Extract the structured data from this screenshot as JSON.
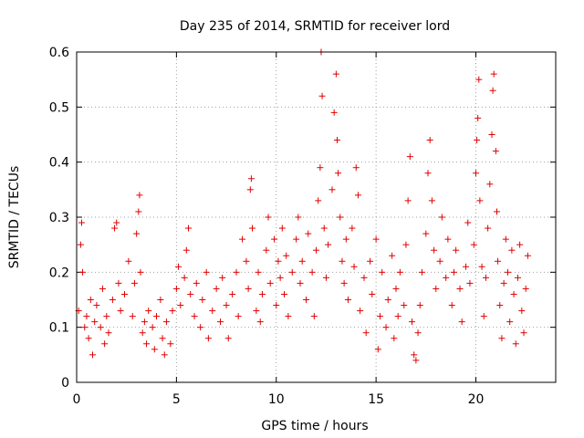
{
  "chart_data": {
    "type": "scatter",
    "title": "Day 235 of 2014, SRMTID for receiver lord",
    "xlabel": "GPS time / hours",
    "ylabel": "SRMTID / TECUs",
    "xlim": [
      0,
      24
    ],
    "ylim": [
      0,
      0.6
    ],
    "xticks": [
      "0",
      "5",
      "10",
      "15",
      "20"
    ],
    "yticks": [
      "0",
      "0.1",
      "0.2",
      "0.3",
      "0.4",
      "0.5",
      "0.6"
    ],
    "grid": true,
    "marker": "+",
    "series_color": "#e00000",
    "series": [
      {
        "name": "SRMTID",
        "points": [
          [
            0.1,
            0.13
          ],
          [
            0.2,
            0.25
          ],
          [
            0.25,
            0.29
          ],
          [
            0.3,
            0.2
          ],
          [
            0.4,
            0.1
          ],
          [
            0.5,
            0.12
          ],
          [
            0.6,
            0.08
          ],
          [
            0.7,
            0.15
          ],
          [
            0.8,
            0.05
          ],
          [
            0.9,
            0.11
          ],
          [
            1.0,
            0.14
          ],
          [
            1.2,
            0.1
          ],
          [
            1.3,
            0.17
          ],
          [
            1.4,
            0.07
          ],
          [
            1.5,
            0.12
          ],
          [
            1.6,
            0.09
          ],
          [
            1.8,
            0.15
          ],
          [
            1.9,
            0.28
          ],
          [
            2.0,
            0.29
          ],
          [
            2.1,
            0.18
          ],
          [
            2.2,
            0.13
          ],
          [
            2.4,
            0.16
          ],
          [
            2.6,
            0.22
          ],
          [
            2.8,
            0.12
          ],
          [
            2.9,
            0.18
          ],
          [
            3.0,
            0.27
          ],
          [
            3.1,
            0.31
          ],
          [
            3.15,
            0.34
          ],
          [
            3.2,
            0.2
          ],
          [
            3.3,
            0.09
          ],
          [
            3.4,
            0.11
          ],
          [
            3.5,
            0.07
          ],
          [
            3.6,
            0.13
          ],
          [
            3.8,
            0.1
          ],
          [
            3.9,
            0.06
          ],
          [
            4.0,
            0.12
          ],
          [
            4.2,
            0.15
          ],
          [
            4.3,
            0.08
          ],
          [
            4.4,
            0.05
          ],
          [
            4.5,
            0.11
          ],
          [
            4.7,
            0.07
          ],
          [
            4.8,
            0.13
          ],
          [
            5.0,
            0.17
          ],
          [
            5.1,
            0.21
          ],
          [
            5.2,
            0.14
          ],
          [
            5.4,
            0.19
          ],
          [
            5.5,
            0.24
          ],
          [
            5.6,
            0.28
          ],
          [
            5.7,
            0.16
          ],
          [
            5.9,
            0.12
          ],
          [
            6.0,
            0.18
          ],
          [
            6.2,
            0.1
          ],
          [
            6.3,
            0.15
          ],
          [
            6.5,
            0.2
          ],
          [
            6.6,
            0.08
          ],
          [
            6.8,
            0.13
          ],
          [
            7.0,
            0.17
          ],
          [
            7.2,
            0.11
          ],
          [
            7.3,
            0.19
          ],
          [
            7.5,
            0.14
          ],
          [
            7.6,
            0.08
          ],
          [
            7.8,
            0.16
          ],
          [
            8.0,
            0.2
          ],
          [
            8.1,
            0.12
          ],
          [
            8.3,
            0.26
          ],
          [
            8.5,
            0.22
          ],
          [
            8.6,
            0.17
          ],
          [
            8.7,
            0.35
          ],
          [
            8.75,
            0.37
          ],
          [
            8.8,
            0.28
          ],
          [
            9.0,
            0.13
          ],
          [
            9.1,
            0.2
          ],
          [
            9.2,
            0.11
          ],
          [
            9.3,
            0.16
          ],
          [
            9.5,
            0.24
          ],
          [
            9.6,
            0.3
          ],
          [
            9.7,
            0.18
          ],
          [
            9.9,
            0.26
          ],
          [
            10.0,
            0.14
          ],
          [
            10.1,
            0.22
          ],
          [
            10.2,
            0.19
          ],
          [
            10.3,
            0.28
          ],
          [
            10.4,
            0.16
          ],
          [
            10.5,
            0.23
          ],
          [
            10.6,
            0.12
          ],
          [
            10.8,
            0.2
          ],
          [
            11.0,
            0.26
          ],
          [
            11.1,
            0.3
          ],
          [
            11.2,
            0.18
          ],
          [
            11.3,
            0.22
          ],
          [
            11.5,
            0.15
          ],
          [
            11.6,
            0.27
          ],
          [
            11.8,
            0.2
          ],
          [
            11.9,
            0.12
          ],
          [
            12.0,
            0.24
          ],
          [
            12.1,
            0.33
          ],
          [
            12.2,
            0.39
          ],
          [
            12.25,
            0.6
          ],
          [
            12.3,
            0.52
          ],
          [
            12.4,
            0.28
          ],
          [
            12.5,
            0.19
          ],
          [
            12.6,
            0.25
          ],
          [
            12.8,
            0.35
          ],
          [
            12.9,
            0.49
          ],
          [
            13.0,
            0.56
          ],
          [
            13.05,
            0.44
          ],
          [
            13.1,
            0.38
          ],
          [
            13.2,
            0.3
          ],
          [
            13.3,
            0.22
          ],
          [
            13.4,
            0.18
          ],
          [
            13.5,
            0.26
          ],
          [
            13.6,
            0.15
          ],
          [
            13.8,
            0.28
          ],
          [
            13.9,
            0.21
          ],
          [
            14.0,
            0.39
          ],
          [
            14.1,
            0.34
          ],
          [
            14.2,
            0.13
          ],
          [
            14.4,
            0.19
          ],
          [
            14.5,
            0.09
          ],
          [
            14.7,
            0.22
          ],
          [
            14.8,
            0.16
          ],
          [
            15.0,
            0.26
          ],
          [
            15.1,
            0.06
          ],
          [
            15.2,
            0.12
          ],
          [
            15.3,
            0.2
          ],
          [
            15.5,
            0.1
          ],
          [
            15.6,
            0.15
          ],
          [
            15.8,
            0.23
          ],
          [
            15.9,
            0.08
          ],
          [
            16.0,
            0.17
          ],
          [
            16.1,
            0.12
          ],
          [
            16.2,
            0.2
          ],
          [
            16.4,
            0.14
          ],
          [
            16.5,
            0.25
          ],
          [
            16.6,
            0.33
          ],
          [
            16.7,
            0.41
          ],
          [
            16.8,
            0.11
          ],
          [
            16.9,
            0.05
          ],
          [
            17.0,
            0.04
          ],
          [
            17.1,
            0.09
          ],
          [
            17.2,
            0.14
          ],
          [
            17.3,
            0.2
          ],
          [
            17.5,
            0.27
          ],
          [
            17.6,
            0.38
          ],
          [
            17.7,
            0.44
          ],
          [
            17.8,
            0.33
          ],
          [
            17.9,
            0.24
          ],
          [
            18.0,
            0.17
          ],
          [
            18.2,
            0.22
          ],
          [
            18.3,
            0.3
          ],
          [
            18.5,
            0.19
          ],
          [
            18.6,
            0.26
          ],
          [
            18.8,
            0.14
          ],
          [
            18.9,
            0.2
          ],
          [
            19.0,
            0.24
          ],
          [
            19.2,
            0.17
          ],
          [
            19.3,
            0.11
          ],
          [
            19.5,
            0.21
          ],
          [
            19.6,
            0.29
          ],
          [
            19.7,
            0.18
          ],
          [
            19.9,
            0.25
          ],
          [
            20.0,
            0.38
          ],
          [
            20.05,
            0.44
          ],
          [
            20.1,
            0.48
          ],
          [
            20.15,
            0.55
          ],
          [
            20.2,
            0.33
          ],
          [
            20.3,
            0.21
          ],
          [
            20.4,
            0.12
          ],
          [
            20.5,
            0.19
          ],
          [
            20.6,
            0.28
          ],
          [
            20.7,
            0.36
          ],
          [
            20.8,
            0.45
          ],
          [
            20.85,
            0.53
          ],
          [
            20.9,
            0.56
          ],
          [
            21.0,
            0.42
          ],
          [
            21.05,
            0.31
          ],
          [
            21.1,
            0.22
          ],
          [
            21.2,
            0.14
          ],
          [
            21.3,
            0.08
          ],
          [
            21.4,
            0.18
          ],
          [
            21.5,
            0.26
          ],
          [
            21.6,
            0.2
          ],
          [
            21.7,
            0.11
          ],
          [
            21.8,
            0.24
          ],
          [
            21.9,
            0.16
          ],
          [
            22.0,
            0.07
          ],
          [
            22.1,
            0.19
          ],
          [
            22.2,
            0.25
          ],
          [
            22.3,
            0.13
          ],
          [
            22.4,
            0.09
          ],
          [
            22.5,
            0.17
          ],
          [
            22.6,
            0.23
          ]
        ]
      }
    ]
  }
}
